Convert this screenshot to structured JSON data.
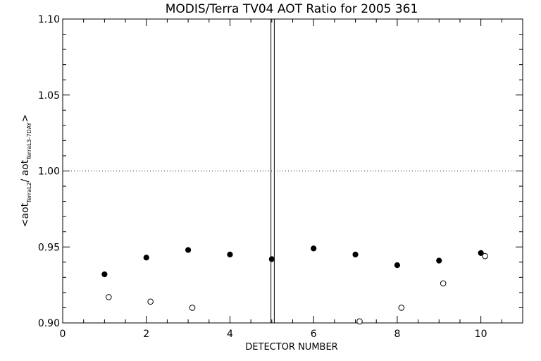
{
  "chart_data": {
    "type": "scatter",
    "title": "MODIS/Terra TV04 AOT Ratio for 2005 361",
    "xlabel": "DETECTOR NUMBER",
    "ylabel": {
      "prefix": "<aot",
      "sub1": "TerraL2",
      "mid": "/ aot",
      "sub2": "TerraL3-7DAY",
      "suffix": ">"
    },
    "xlim": [
      0,
      11
    ],
    "ylim": [
      0.9,
      1.1
    ],
    "x_ticks": [
      0,
      2,
      4,
      6,
      8,
      10
    ],
    "x_tick_labels": [
      "0",
      "2",
      "4",
      "6",
      "8",
      "10"
    ],
    "y_ticks": [
      0.9,
      0.95,
      1.0,
      1.05,
      1.1
    ],
    "y_tick_labels": [
      "0.90",
      "0.95",
      "1.00",
      "1.05",
      "1.10"
    ],
    "reference_line_y": 1.0,
    "vertical_lines_x": [
      4.98,
      5.06
    ],
    "grid": false,
    "series": [
      {
        "marker": "filled-circle",
        "x": [
          1,
          2,
          3,
          4,
          5,
          6,
          7,
          8,
          9,
          10
        ],
        "y": [
          0.932,
          0.943,
          0.948,
          0.945,
          0.942,
          0.949,
          0.945,
          0.938,
          0.941,
          0.946
        ]
      },
      {
        "marker": "open-circle",
        "x": [
          1.1,
          2.1,
          3.1,
          7.1,
          8.1,
          9.1,
          10.1
        ],
        "y": [
          0.917,
          0.914,
          0.91,
          0.901,
          0.91,
          0.926,
          0.944
        ]
      }
    ]
  }
}
